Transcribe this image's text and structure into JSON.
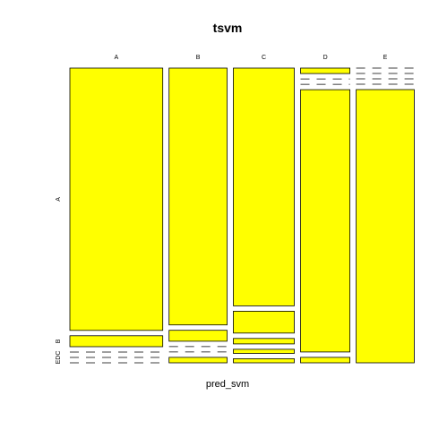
{
  "chart_data": {
    "type": "mosaic",
    "title": "tsvm",
    "xlabel": "pred_svm",
    "ylabel": "",
    "x_categories": [
      "A",
      "B",
      "C",
      "D",
      "E"
    ],
    "y_categories": [
      "A",
      "B",
      "C",
      "D",
      "E"
    ],
    "y_axis_labels": [
      "A",
      "B",
      "EDC"
    ],
    "x_proportions": [
      0.32,
      0.2,
      0.21,
      0.17,
      0.2
    ],
    "column_cell_proportions": [
      [
        0.96,
        0.04,
        0.0,
        0.0,
        0.0
      ],
      [
        0.94,
        0.04,
        0.0,
        0.0,
        0.02
      ],
      [
        0.87,
        0.08,
        0.02,
        0.015,
        0.015
      ],
      [
        0.02,
        0.0,
        0.0,
        0.96,
        0.02
      ],
      [
        0.0,
        0.0,
        0.0,
        0.0,
        1.0
      ]
    ],
    "fill_color": "#ffff00",
    "stroke_color": "#000000",
    "background": "#ffffff",
    "grid": false
  }
}
